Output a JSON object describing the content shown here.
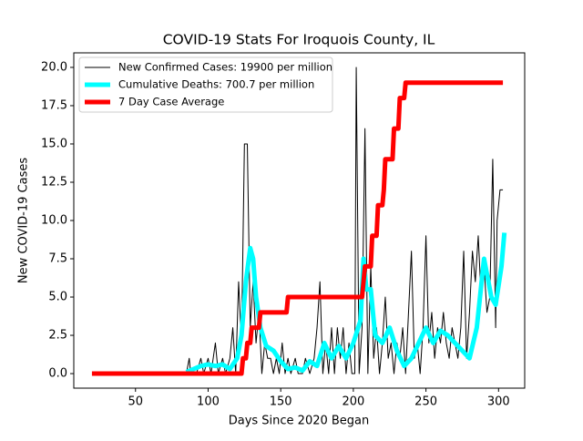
{
  "chart_data": {
    "type": "line",
    "title": "COVID-19 Stats For Iroquois County, IL",
    "x_label": "Days Since 2020 Began",
    "y_label": "New COVID-19 Cases",
    "xlim": [
      7.5,
      318
    ],
    "ylim": [
      -0.95,
      20.95
    ],
    "xticks": [
      50,
      100,
      150,
      200,
      250,
      300
    ],
    "yticks": [
      {
        "value": 0,
        "label": "0.0"
      },
      {
        "value": 2.5,
        "label": "2.5"
      },
      {
        "value": 5,
        "label": "5.0"
      },
      {
        "value": 7.5,
        "label": "7.5"
      },
      {
        "value": 10,
        "label": "10.0"
      },
      {
        "value": 12.5,
        "label": "12.5"
      },
      {
        "value": 15,
        "label": "15.0"
      },
      {
        "value": 17.5,
        "label": "17.5"
      },
      {
        "value": 20,
        "label": "20.0"
      }
    ],
    "legend": "upper left",
    "series": [
      {
        "name": "New Confirmed Cases: 19900 per million",
        "color": "#000000",
        "width": 1,
        "x": [
          85,
          87,
          88,
          92,
          95,
          97,
          100,
          102,
          105,
          107,
          110,
          112,
          115,
          117,
          119,
          121,
          123,
          125,
          127,
          129,
          131,
          133,
          135,
          137,
          139,
          141,
          143,
          145,
          147,
          149,
          151,
          153,
          155,
          157,
          160,
          162,
          165,
          167,
          170,
          173,
          175,
          177,
          179,
          181,
          183,
          185,
          187,
          189,
          191,
          193,
          195,
          197,
          199,
          201,
          202,
          204,
          206,
          208,
          210,
          212,
          214,
          216,
          218,
          220,
          222,
          224,
          226,
          228,
          230,
          232,
          234,
          236,
          238,
          240,
          242,
          244,
          246,
          248,
          250,
          252,
          254,
          256,
          258,
          260,
          262,
          264,
          266,
          268,
          270,
          272,
          274,
          276,
          278,
          280,
          282,
          284,
          286,
          288,
          290,
          292,
          294,
          296,
          298,
          299,
          301,
          303
        ],
        "values": [
          0,
          1,
          0,
          0,
          1,
          0,
          1,
          0,
          2,
          0,
          1,
          0,
          1,
          3,
          0,
          6,
          2,
          15,
          15,
          3,
          6,
          2,
          4,
          0,
          2,
          1,
          1,
          0,
          1,
          0,
          2,
          0,
          1,
          0,
          1,
          0,
          0,
          1,
          0,
          1,
          3,
          6,
          0,
          2,
          0,
          3,
          0,
          3,
          1,
          3,
          0,
          2,
          0,
          0,
          20,
          0,
          3,
          16,
          0,
          7,
          1,
          3,
          0,
          2,
          5,
          1,
          2,
          0,
          2,
          1,
          3,
          0,
          4,
          8,
          1,
          2,
          0,
          3,
          9,
          2,
          4,
          1,
          3,
          2,
          4,
          2,
          1,
          3,
          2,
          1,
          3,
          8,
          1,
          4,
          8,
          6,
          9,
          5,
          7,
          4,
          5,
          14,
          3,
          10,
          12,
          12
        ]
      },
      {
        "name": "Cumulative Deaths: 700.7 per million",
        "color": "#00ffff",
        "width": 5,
        "x": [
          85,
          90,
          95,
          100,
          105,
          110,
          115,
          120,
          123,
          126,
          129,
          131,
          133,
          136,
          140,
          145,
          150,
          155,
          160,
          165,
          170,
          175,
          180,
          185,
          190,
          195,
          200,
          205,
          207,
          209,
          212,
          215,
          220,
          225,
          230,
          235,
          240,
          245,
          250,
          255,
          260,
          265,
          270,
          275,
          280,
          285,
          290,
          295,
          298,
          302,
          304
        ],
        "values": [
          0.1,
          0.3,
          0.5,
          0.6,
          0.5,
          0.6,
          0.3,
          1,
          2.5,
          6,
          8.2,
          7.5,
          5,
          3,
          1.8,
          1.5,
          0.8,
          0.3,
          0.4,
          0.2,
          0.8,
          0.5,
          2,
          1,
          1.8,
          1,
          2,
          3.5,
          7.5,
          5.5,
          5.5,
          2.5,
          2,
          3,
          1.5,
          0.5,
          1,
          2,
          3,
          2,
          2.8,
          2.5,
          2,
          1.5,
          1,
          3,
          7.5,
          5,
          4.5,
          7,
          9.2
        ]
      },
      {
        "name": "7 Day Case Average",
        "color": "#ff0000",
        "width": 5,
        "x": [
          20,
          123,
          124,
          126,
          127,
          129,
          130,
          135,
          136,
          154,
          155,
          206,
          207,
          208,
          212,
          213,
          216,
          217,
          220,
          221,
          222,
          227,
          228,
          231,
          232,
          235,
          236,
          303
        ],
        "values": [
          0,
          0,
          1,
          1,
          2,
          2,
          3,
          3,
          4,
          4,
          5,
          5,
          6,
          7,
          7,
          9,
          9,
          11,
          11,
          12,
          14,
          14,
          16,
          16,
          18,
          18,
          19,
          19
        ]
      }
    ]
  }
}
